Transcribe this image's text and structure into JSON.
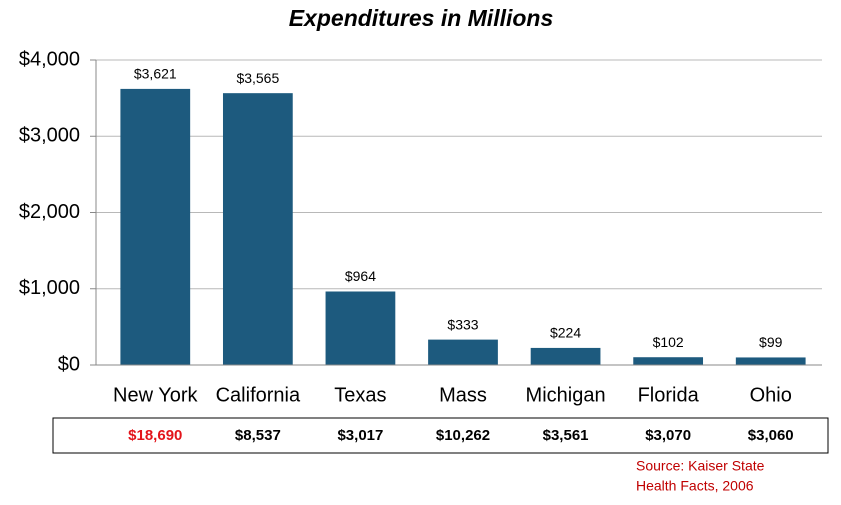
{
  "chart_data": {
    "type": "bar",
    "title": "Expenditures in Millions",
    "categories": [
      "New York",
      "California",
      "Texas",
      "Mass",
      "Michigan",
      "Florida",
      "Ohio"
    ],
    "values": [
      3621,
      3565,
      964,
      333,
      224,
      102,
      99
    ],
    "value_labels": [
      "$3,621",
      "$3,565",
      "$964",
      "$333",
      "$224",
      "$102",
      "$99"
    ],
    "color": "#1d5a7e",
    "ylim": [
      0,
      4000
    ],
    "yticks": [
      {
        "value": 0,
        "label": "$0"
      },
      {
        "value": 1000,
        "label": "$1,000"
      },
      {
        "value": 2000,
        "label": "$2,000"
      },
      {
        "value": 3000,
        "label": "$3,000"
      },
      {
        "value": 4000,
        "label": "$4,000"
      }
    ],
    "grid": true
  },
  "table": {
    "cells": [
      {
        "text": "$18,690",
        "color": "#e3141b"
      },
      {
        "text": "$8,537",
        "color": "#000000"
      },
      {
        "text": "$3,017",
        "color": "#000000"
      },
      {
        "text": "$10,262",
        "color": "#000000"
      },
      {
        "text": "$3,561",
        "color": "#000000"
      },
      {
        "text": "$3,070",
        "color": "#000000"
      },
      {
        "text": "$3,060",
        "color": "#000000"
      }
    ]
  },
  "source": [
    "Source: Kaiser State",
    "Health Facts, 2006"
  ]
}
